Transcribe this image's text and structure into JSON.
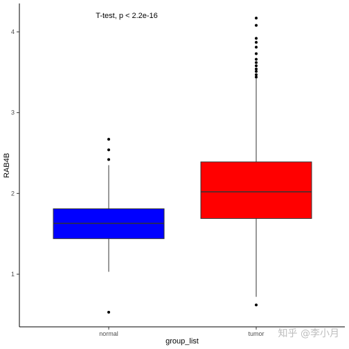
{
  "chart_data": {
    "type": "box",
    "xlabel": "group_list",
    "ylabel": "RAB4B",
    "annotation": "T-test, p < 2.2e-16",
    "categories": [
      "normal",
      "tumor"
    ],
    "y_ticks": [
      1,
      2,
      3,
      4
    ],
    "y_tick_labels": [
      "1",
      "2",
      "3",
      "4"
    ],
    "ylim": [
      0.45,
      4.25
    ],
    "grid": false,
    "legend": "none",
    "boxes": [
      {
        "category": "normal",
        "q1": 1.44,
        "median": 1.63,
        "q3": 1.81,
        "whisker_low": 1.03,
        "whisker_high": 2.35,
        "outliers": [
          2.67,
          2.54,
          2.42,
          0.53
        ],
        "color": "#0000ff"
      },
      {
        "category": "tumor",
        "q1": 1.69,
        "median": 2.02,
        "q3": 2.39,
        "whisker_low": 0.72,
        "whisker_high": 3.42,
        "outliers": [
          4.17,
          4.08,
          3.92,
          3.87,
          3.81,
          3.73,
          3.66,
          3.62,
          3.58,
          3.54,
          3.51,
          3.47,
          3.44,
          0.62
        ],
        "color": "#ff0000"
      }
    ]
  },
  "watermark": "知乎 @李小月"
}
